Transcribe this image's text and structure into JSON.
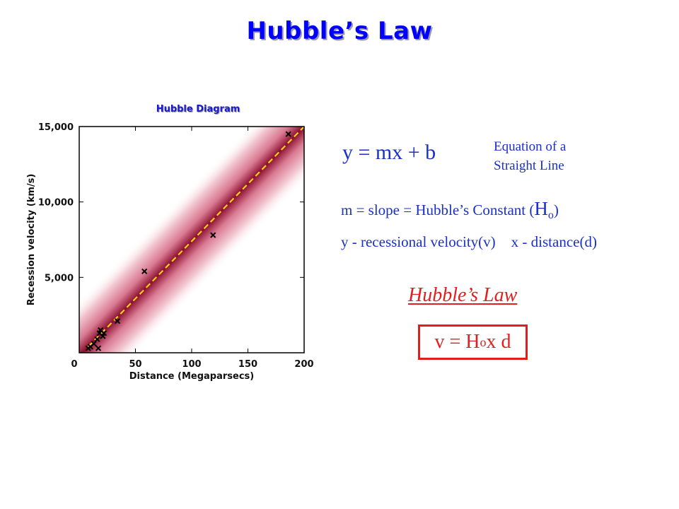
{
  "slide": {
    "title": "Hubble’s Law"
  },
  "chart_data": {
    "type": "scatter",
    "title": "Hubble Diagram",
    "xlabel": "Distance (Megaparsecs)",
    "ylabel": "Recession velocity (km/s)",
    "xlim": [
      0,
      200
    ],
    "ylim": [
      0,
      15000
    ],
    "x_ticks": [
      0,
      50,
      100,
      150,
      200
    ],
    "x_tick_labels": [
      "0",
      "50",
      "100",
      "150",
      "200"
    ],
    "y_ticks": [
      5000,
      10000,
      15000
    ],
    "y_tick_labels": [
      "5,000",
      "10,000",
      "15,000"
    ],
    "series": [
      {
        "marker": "x",
        "points": [
          {
            "x": 8,
            "y": 300
          },
          {
            "x": 10,
            "y": 400
          },
          {
            "x": 13,
            "y": 600
          },
          {
            "x": 16,
            "y": 900
          },
          {
            "x": 17,
            "y": 300
          },
          {
            "x": 18,
            "y": 1300
          },
          {
            "x": 19,
            "y": 1500
          },
          {
            "x": 21,
            "y": 1100
          },
          {
            "x": 22,
            "y": 1300
          },
          {
            "x": 34,
            "y": 2100
          },
          {
            "x": 58,
            "y": 5400
          },
          {
            "x": 119,
            "y": 7800
          },
          {
            "x": 186,
            "y": 14500
          }
        ]
      }
    ],
    "fit_line": {
      "x": [
        8,
        200
      ],
      "y": [
        400,
        15000
      ]
    },
    "colors": {
      "band_core": "#8c1030",
      "fit_line": "#ffd21a",
      "marker": "#000000",
      "frame": "#000000"
    }
  },
  "equation": {
    "main": "y = mx + b",
    "note_line1": "Equation of a",
    "note_line2": "Straight Line"
  },
  "slope": {
    "text": "m = slope = Hubble’s Constant (",
    "symbol": "H",
    "subscript": "o",
    "close": ")"
  },
  "variables": {
    "y_text": "y -  recessional velocity(v)",
    "x_text": "x - distance(d)"
  },
  "law": {
    "heading": "Hubble’s Law",
    "formula_prefix": "v = H",
    "formula_sub": "o",
    "formula_suffix": " x d"
  },
  "colors": {
    "title": "#0000ff",
    "text": "#1a30c8",
    "accent": "#e02020"
  }
}
